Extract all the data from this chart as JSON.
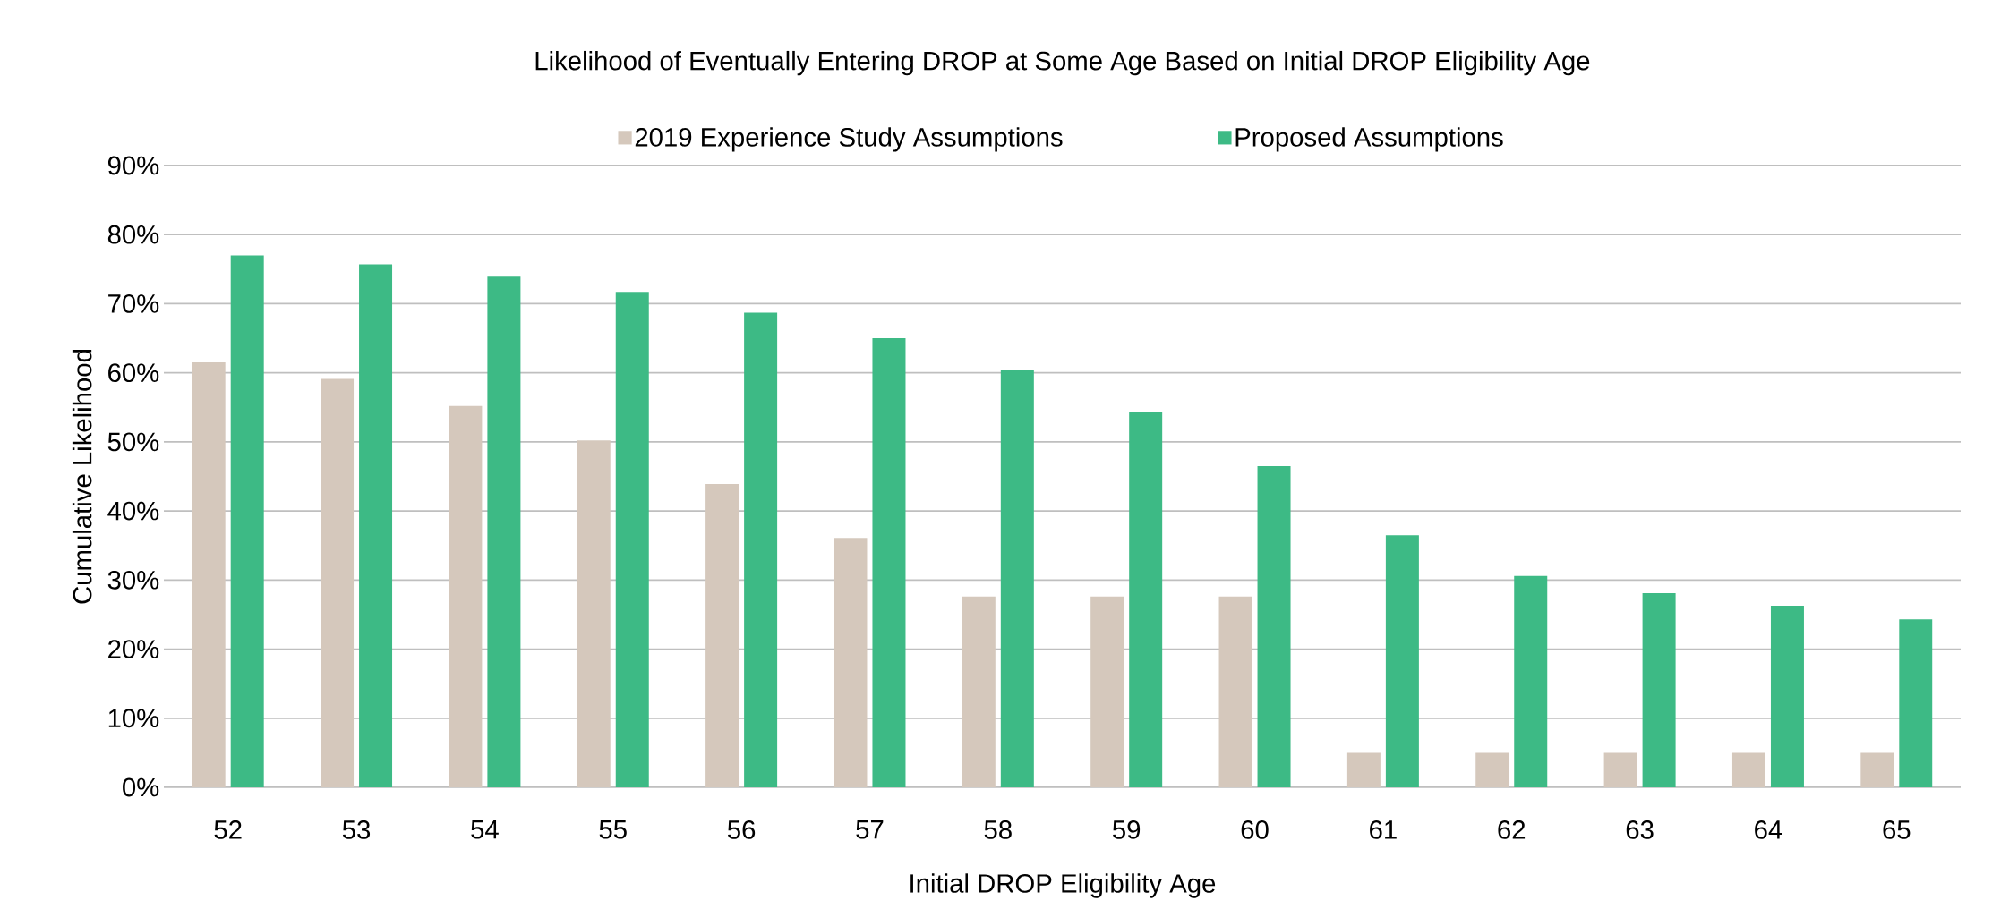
{
  "chart_data": {
    "type": "bar",
    "title": "Likelihood of Eventually Entering DROP at Some Age Based on Initial DROP Eligibility Age",
    "xlabel": "Initial DROP Eligibility Age",
    "ylabel": "Cumulative Likelihood",
    "categories": [
      "52",
      "53",
      "54",
      "55",
      "56",
      "57",
      "58",
      "59",
      "60",
      "61",
      "62",
      "63",
      "64",
      "65"
    ],
    "series": [
      {
        "name": "2019 Experience Study Assumptions",
        "color": "#d5c8bc",
        "values": [
          61.5,
          59.1,
          55.2,
          50.2,
          43.9,
          36.1,
          27.6,
          27.6,
          27.6,
          5.0,
          5.0,
          5.0,
          5.0,
          5.0
        ]
      },
      {
        "name": "Proposed Assumptions",
        "color": "#3dba85",
        "values": [
          77.0,
          75.7,
          73.9,
          71.7,
          68.7,
          65.0,
          60.4,
          54.4,
          46.5,
          36.5,
          30.6,
          28.1,
          26.3,
          24.3
        ]
      }
    ],
    "ylim": [
      0,
      90
    ],
    "yticks": [
      {
        "value": 0,
        "label": "0%"
      },
      {
        "value": 10,
        "label": "10%"
      },
      {
        "value": 20,
        "label": "20%"
      },
      {
        "value": 30,
        "label": "30%"
      },
      {
        "value": 40,
        "label": "40%"
      },
      {
        "value": 50,
        "label": "50%"
      },
      {
        "value": 60,
        "label": "60%"
      },
      {
        "value": 70,
        "label": "70%"
      },
      {
        "value": 80,
        "label": "80%"
      },
      {
        "value": 90,
        "label": "90%"
      }
    ],
    "grid": "y",
    "legend": "top"
  }
}
